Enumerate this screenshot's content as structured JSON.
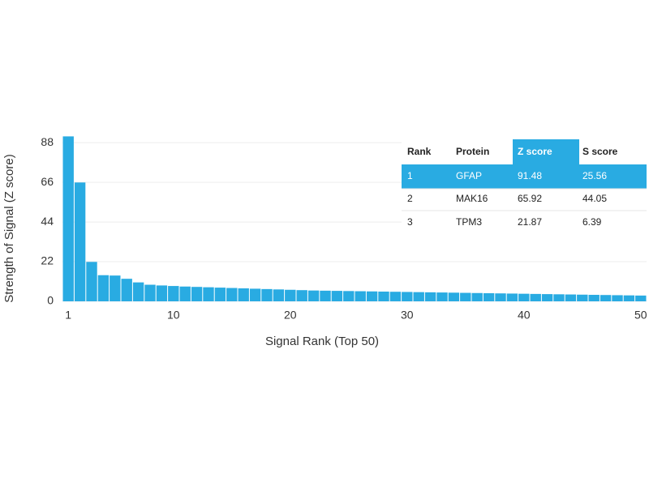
{
  "chart_data": {
    "type": "bar",
    "x_label": "Signal Rank (Top 50)",
    "y_label": "Strength of Signal (Z score)",
    "x": [
      1,
      2,
      3,
      4,
      5,
      6,
      7,
      8,
      9,
      10,
      11,
      12,
      13,
      14,
      15,
      16,
      17,
      18,
      19,
      20,
      21,
      22,
      23,
      24,
      25,
      26,
      27,
      28,
      29,
      30,
      31,
      32,
      33,
      34,
      35,
      36,
      37,
      38,
      39,
      40,
      41,
      42,
      43,
      44,
      45,
      46,
      47,
      48,
      49,
      50
    ],
    "values": [
      91.48,
      65.92,
      21.87,
      14.5,
      14.3,
      12.5,
      10.5,
      9.2,
      8.8,
      8.5,
      8.2,
      8.0,
      7.8,
      7.6,
      7.4,
      7.2,
      7.0,
      6.8,
      6.6,
      6.4,
      6.2,
      6.0,
      5.9,
      5.8,
      5.7,
      5.6,
      5.5,
      5.4,
      5.3,
      5.2,
      5.1,
      5.0,
      4.9,
      4.8,
      4.7,
      4.6,
      4.5,
      4.4,
      4.3,
      4.2,
      4.1,
      4.0,
      3.9,
      3.8,
      3.7,
      3.6,
      3.5,
      3.4,
      3.3,
      3.2
    ],
    "color": "#29abe2",
    "xlim": [
      0.5,
      50.5
    ],
    "xticks": [
      1,
      10,
      20,
      30,
      40,
      50
    ],
    "ylim": [
      0,
      93
    ],
    "yticks": [
      0,
      22,
      44,
      66,
      88
    ],
    "grid": true
  },
  "table": {
    "columns": [
      "Rank",
      "Protein",
      "Z score",
      "S score"
    ],
    "rows": [
      [
        1,
        "GFAP",
        91.48,
        25.56
      ],
      [
        2,
        "MAK16",
        65.92,
        44.05
      ],
      [
        3,
        "TPM3",
        21.87,
        6.39
      ]
    ]
  }
}
